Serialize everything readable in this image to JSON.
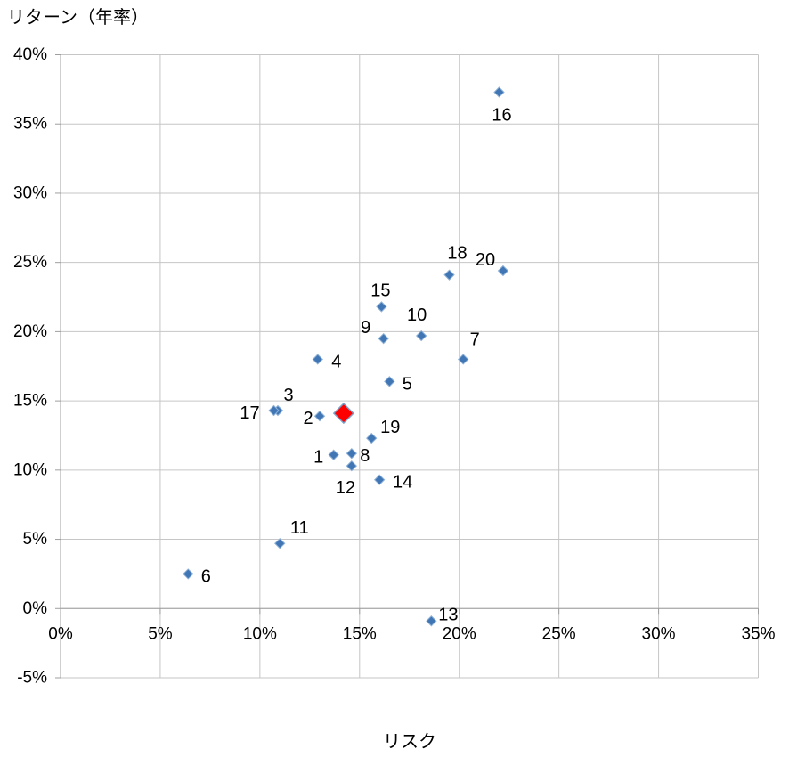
{
  "chart_data": {
    "type": "scatter",
    "xlabel": "リスク",
    "ylabel": "リターン（年率）",
    "xlim": [
      0,
      35
    ],
    "ylim": [
      -5,
      40
    ],
    "grid": true,
    "legend": "none",
    "x_ticks": [
      {
        "v": 0,
        "label": "0%"
      },
      {
        "v": 5,
        "label": "5%"
      },
      {
        "v": 10,
        "label": "10%"
      },
      {
        "v": 15,
        "label": "15%"
      },
      {
        "v": 20,
        "label": "20%"
      },
      {
        "v": 25,
        "label": "25%"
      },
      {
        "v": 30,
        "label": "30%"
      },
      {
        "v": 35,
        "label": "35%"
      }
    ],
    "y_ticks": [
      {
        "v": 40,
        "label": "40%"
      },
      {
        "v": 35,
        "label": "35%"
      },
      {
        "v": 30,
        "label": "30%"
      },
      {
        "v": 25,
        "label": "25%"
      },
      {
        "v": 20,
        "label": "20%"
      },
      {
        "v": 15,
        "label": "15%"
      },
      {
        "v": 10,
        "label": "10%"
      },
      {
        "v": 5,
        "label": "5%"
      },
      {
        "v": 0,
        "label": "0%"
      },
      {
        "v": -5,
        "label": "-5%"
      }
    ],
    "colors": {
      "grid": "#C6C6C6",
      "axis": "#9F9F9F",
      "tick_text": "#000000",
      "label_text": "#000000",
      "point_fill": "#4176B4",
      "point_stroke": "#8FB2D9",
      "highlight_fill": "#FF0000",
      "highlight_stroke": "#7D9FC7"
    },
    "series": [
      {
        "id": "numbered-points",
        "marker": "diamond",
        "marker_size": 5.5,
        "fill": "#4176B4",
        "stroke": "#8FB2D9",
        "stroke_width": 1,
        "points": [
          {
            "label": "1",
            "x": 13.7,
            "y": 11.1,
            "label_dx": -17,
            "label_dy": 3
          },
          {
            "label": "2",
            "x": 13.0,
            "y": 13.9,
            "label_dx": -13,
            "label_dy": 3
          },
          {
            "label": "3",
            "x": 10.9,
            "y": 14.3,
            "label_dx": 12,
            "label_dy": -17
          },
          {
            "label": "4",
            "x": 12.9,
            "y": 18.0,
            "label_dx": 21,
            "label_dy": 3
          },
          {
            "label": "5",
            "x": 16.5,
            "y": 16.4,
            "label_dx": 20,
            "label_dy": 3
          },
          {
            "label": "6",
            "x": 6.4,
            "y": 2.5,
            "label_dx": 20,
            "label_dy": 3
          },
          {
            "label": "7",
            "x": 20.2,
            "y": 18.0,
            "label_dx": 13,
            "label_dy": -22
          },
          {
            "label": "8",
            "x": 14.6,
            "y": 11.2,
            "label_dx": 15,
            "label_dy": 3
          },
          {
            "label": "9",
            "x": 16.2,
            "y": 19.5,
            "label_dx": -20,
            "label_dy": -12
          },
          {
            "label": "10",
            "x": 18.1,
            "y": 19.7,
            "label_dx": -5,
            "label_dy": -23
          },
          {
            "label": "11",
            "x": 11.0,
            "y": 4.7,
            "label_dx": 22,
            "label_dy": -17
          },
          {
            "label": "12",
            "x": 14.6,
            "y": 10.3,
            "label_dx": -7,
            "label_dy": 25
          },
          {
            "label": "13",
            "x": 18.6,
            "y": -0.9,
            "label_dx": 19,
            "label_dy": -7
          },
          {
            "label": "14",
            "x": 16.0,
            "y": 9.3,
            "label_dx": 26,
            "label_dy": 3
          },
          {
            "label": "15",
            "x": 16.1,
            "y": 21.8,
            "label_dx": -1,
            "label_dy": -18
          },
          {
            "label": "16",
            "x": 22.0,
            "y": 37.3,
            "label_dx": 3,
            "label_dy": 26
          },
          {
            "label": "17",
            "x": 10.7,
            "y": 14.3,
            "label_dx": -27,
            "label_dy": 3
          },
          {
            "label": "18",
            "x": 19.5,
            "y": 24.1,
            "label_dx": 9,
            "label_dy": -24
          },
          {
            "label": "19",
            "x": 15.6,
            "y": 12.3,
            "label_dx": 21,
            "label_dy": -12
          },
          {
            "label": "20",
            "x": 22.2,
            "y": 24.4,
            "label_dx": -20,
            "label_dy": -12
          }
        ]
      },
      {
        "id": "highlight-point",
        "marker": "diamond",
        "marker_size": 11,
        "fill": "#FF0000",
        "stroke": "#7D9FC7",
        "stroke_width": 1.5,
        "points": [
          {
            "label": "",
            "x": 14.2,
            "y": 14.1
          }
        ]
      }
    ]
  }
}
